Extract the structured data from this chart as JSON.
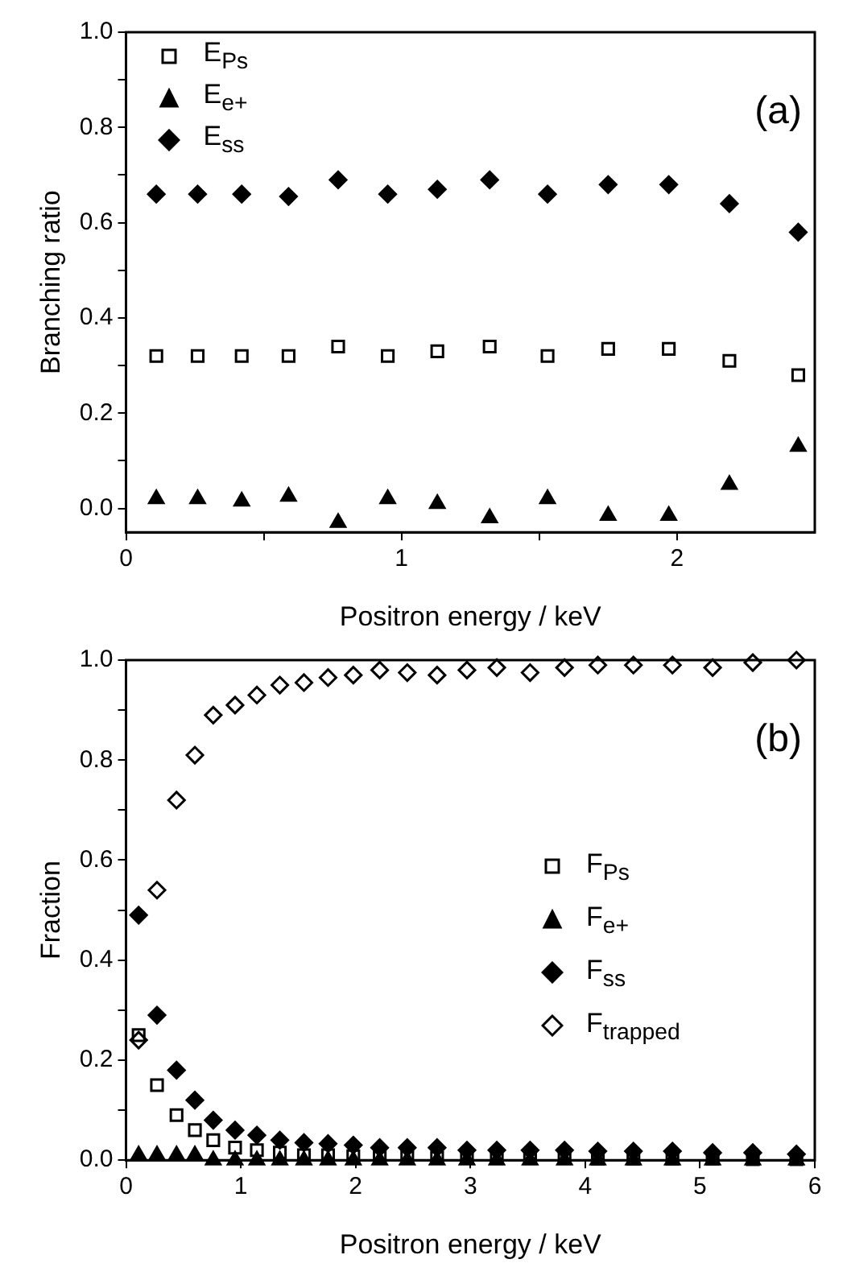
{
  "chart_data": [
    {
      "type": "scatter",
      "xlabel": "Positron energy / keV",
      "ylabel": "Branching ratio",
      "annotations": [
        "(a)"
      ],
      "legend": "top left",
      "grid": false,
      "xlim": [
        0,
        2.5
      ],
      "xticks": [
        0,
        {
          "value": 0.5,
          "label": null
        },
        1,
        {
          "value": 1.5,
          "label": null
        },
        2
      ],
      "ylim": [
        -0.05,
        1.0
      ],
      "yticks": [
        {
          "value": 0,
          "label": "0.0"
        },
        {
          "value": 0.1,
          "label": null
        },
        {
          "value": 0.2,
          "label": "0.2"
        },
        {
          "value": 0.3,
          "label": null
        },
        {
          "value": 0.4,
          "label": "0.4"
        },
        {
          "value": 0.5,
          "label": null
        },
        {
          "value": 0.6,
          "label": "0.6"
        },
        {
          "value": 0.7,
          "label": null
        },
        {
          "value": 0.8,
          "label": "0.8"
        },
        {
          "value": 0.9,
          "label": null
        },
        {
          "value": 1.0,
          "label": "1.0"
        }
      ],
      "x": [
        0.11,
        0.26,
        0.42,
        0.59,
        0.77,
        0.95,
        1.13,
        1.32,
        1.53,
        1.75,
        1.97,
        2.19,
        2.44
      ],
      "series": [
        {
          "name": "E$_{Ps}$",
          "color": "#000000",
          "marker": "square",
          "values": [
            0.32,
            0.32,
            0.32,
            0.32,
            0.34,
            0.32,
            0.33,
            0.34,
            0.32,
            0.335,
            0.335,
            0.31,
            0.28
          ]
        },
        {
          "name": "E$_{e+}$",
          "color": "#000000",
          "marker": "triangle",
          "values": [
            0.02,
            0.02,
            0.015,
            0.025,
            -0.03,
            0.02,
            0.01,
            -0.02,
            0.02,
            -0.015,
            -0.015,
            0.05,
            0.13
          ]
        },
        {
          "name": "E$_{ss}$",
          "color": "#000000",
          "marker": "diamond",
          "values": [
            0.66,
            0.66,
            0.66,
            0.655,
            0.69,
            0.66,
            0.67,
            0.69,
            0.66,
            0.68,
            0.68,
            0.64,
            0.58
          ]
        }
      ]
    },
    {
      "type": "scatter",
      "xlabel": "Positron energy / keV",
      "ylabel": "Fraction",
      "annotations": [
        "(b)"
      ],
      "legend": "right",
      "grid": false,
      "xlim": [
        0,
        6
      ],
      "xticks": [
        0,
        1,
        2,
        3,
        4,
        5,
        6
      ],
      "ylim": [
        0,
        1.0
      ],
      "yticks": [
        {
          "value": 0,
          "label": "0.0"
        },
        {
          "value": 0.1,
          "label": null
        },
        {
          "value": 0.2,
          "label": "0.2"
        },
        {
          "value": 0.3,
          "label": null
        },
        {
          "value": 0.4,
          "label": "0.4"
        },
        {
          "value": 0.5,
          "label": null
        },
        {
          "value": 0.6,
          "label": "0.6"
        },
        {
          "value": 0.7,
          "label": null
        },
        {
          "value": 0.8,
          "label": "0.8"
        },
        {
          "value": 0.9,
          "label": null
        },
        {
          "value": 1.0,
          "label": "1.0"
        }
      ],
      "x": [
        0.11,
        0.27,
        0.44,
        0.6,
        0.76,
        0.95,
        1.14,
        1.34,
        1.55,
        1.76,
        1.98,
        2.21,
        2.45,
        2.71,
        2.97,
        3.23,
        3.52,
        3.82,
        4.11,
        4.42,
        4.76,
        5.11,
        5.46,
        5.84
      ],
      "series": [
        {
          "name": "F$_{Ps}$",
          "color": "#000000",
          "marker": "square",
          "values": [
            0.25,
            0.15,
            0.09,
            0.06,
            0.04,
            0.025,
            0.02,
            0.015,
            0.01,
            0.01,
            0.008,
            0.007,
            0.006,
            0.005,
            0.005,
            0.004,
            0.004,
            0.004,
            0.003,
            0.003,
            0.003,
            0.003,
            0.002,
            0.002
          ]
        },
        {
          "name": "F$_{e+}$",
          "color": "#000000",
          "marker": "triangle",
          "values": [
            0.01,
            0.01,
            0.01,
            0.01,
            0.0,
            0.0,
            0.0,
            0.0,
            0.0,
            0.0,
            0.0,
            0.0,
            0.0,
            0.0,
            0.0,
            0.0,
            0.0,
            0.0,
            0.0,
            0.0,
            0.0,
            0.0,
            0.0,
            0.0
          ]
        },
        {
          "name": "F$_{ss}$",
          "color": "#000000",
          "marker": "diamond",
          "values": [
            0.49,
            0.29,
            0.18,
            0.12,
            0.08,
            0.06,
            0.05,
            0.04,
            0.035,
            0.033,
            0.03,
            0.025,
            0.025,
            0.025,
            0.02,
            0.02,
            0.02,
            0.02,
            0.018,
            0.018,
            0.018,
            0.015,
            0.015,
            0.012
          ]
        },
        {
          "name": "F$_{trapped}$",
          "color": "#000000",
          "marker": "diamond",
          "values": [
            0.24,
            0.54,
            0.72,
            0.81,
            0.89,
            0.91,
            0.93,
            0.95,
            0.955,
            0.965,
            0.97,
            0.98,
            0.975,
            0.97,
            0.98,
            0.985,
            0.975,
            0.985,
            0.99,
            0.99,
            0.99,
            0.985,
            0.995,
            1.0
          ]
        }
      ]
    }
  ]
}
